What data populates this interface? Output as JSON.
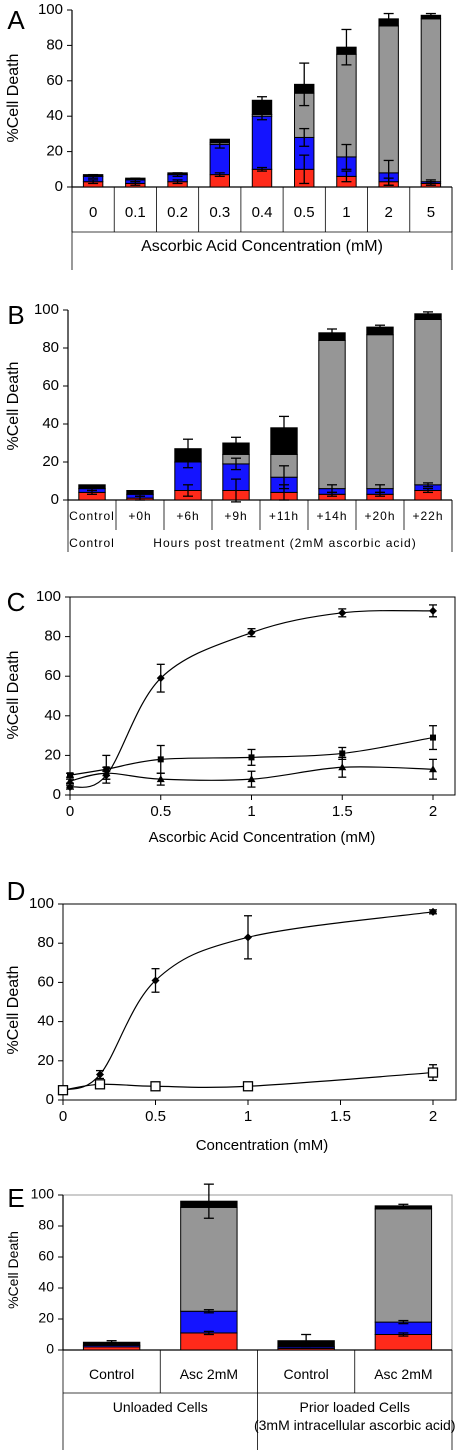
{
  "colors": {
    "red": "#ff2a1a",
    "blue": "#1414ff",
    "gray": "#969696",
    "black": "#000000"
  },
  "chart_data": [
    {
      "panel": "A",
      "type": "bar",
      "stacked": true,
      "ylabel": "%Cell Death",
      "xlabel": "Ascorbic Acid Concentration (mM)",
      "ylim": [
        0,
        100
      ],
      "yticks": [
        "0",
        "20",
        "40",
        "60",
        "80",
        "100"
      ],
      "categories": [
        "0",
        "0.1",
        "0.2",
        "0.3",
        "0.4",
        "0.5",
        "1",
        "2",
        "5"
      ],
      "series": [
        {
          "values": [
            3,
            2,
            3,
            7,
            10,
            10,
            6,
            3,
            2
          ],
          "errors": [
            1,
            1,
            1,
            1,
            1,
            8,
            3,
            2,
            1
          ]
        },
        {
          "values": [
            3,
            2,
            4,
            17,
            30,
            18,
            11,
            5,
            1
          ],
          "errors": [
            1,
            1,
            1,
            2,
            2,
            5,
            7,
            7,
            1
          ]
        },
        {
          "values": [
            0,
            0,
            0,
            1,
            1,
            25,
            58,
            83,
            92
          ],
          "errors": [
            0,
            0,
            0,
            0,
            0,
            0,
            0,
            0,
            0
          ]
        },
        {
          "values": [
            1,
            1,
            1,
            2,
            8,
            5,
            4,
            4,
            2
          ],
          "errors": [
            0,
            0,
            0,
            0,
            2,
            12,
            10,
            3,
            1
          ]
        }
      ]
    },
    {
      "panel": "B",
      "type": "bar",
      "stacked": true,
      "ylabel": "%Cell Death",
      "xlabel": "Hours post treatment (2mM ascorbic acid)",
      "ylim": [
        0,
        100
      ],
      "yticks": [
        "0",
        "20",
        "40",
        "60",
        "80",
        "100"
      ],
      "categories": [
        "Control",
        "+0h",
        "+6h",
        "+9h",
        "+11h",
        "+14h",
        "+20h",
        "+22h"
      ],
      "series": [
        {
          "values": [
            4,
            1,
            5,
            5,
            4,
            3,
            3,
            5
          ],
          "errors": [
            1,
            1,
            3,
            6,
            4,
            1,
            1,
            1
          ]
        },
        {
          "values": [
            2,
            2,
            15,
            14,
            8,
            3,
            3,
            3
          ],
          "errors": [
            1,
            1,
            3,
            3,
            6,
            2,
            2,
            1
          ]
        },
        {
          "values": [
            0,
            0,
            0,
            5,
            12,
            78,
            81,
            87
          ],
          "errors": [
            0,
            0,
            0,
            0,
            0,
            0,
            0,
            0
          ]
        },
        {
          "values": [
            2,
            2,
            7,
            6,
            14,
            4,
            4,
            3
          ],
          "errors": [
            0,
            0,
            5,
            3,
            6,
            2,
            1,
            1
          ]
        }
      ]
    },
    {
      "panel": "C",
      "type": "line",
      "ylabel": "%Cell Death",
      "xlabel": "Ascorbic Acid  Concentration (mM)",
      "xlim": [
        0,
        2
      ],
      "ylim": [
        0,
        100
      ],
      "xticks": [
        "0",
        "0.5",
        "1",
        "1.5",
        "2"
      ],
      "yticks": [
        "0",
        "20",
        "40",
        "60",
        "80",
        "100"
      ],
      "series": [
        {
          "marker": "diamond",
          "x": [
            0,
            0.2,
            0.5,
            1,
            1.5,
            2
          ],
          "y": [
            4,
            10,
            59,
            82,
            92,
            93
          ],
          "errors": [
            1,
            2,
            7,
            2,
            2,
            3
          ]
        },
        {
          "marker": "square",
          "x": [
            0,
            0.2,
            0.5,
            1,
            1.5,
            2
          ],
          "y": [
            10,
            13,
            18,
            19,
            21,
            29
          ],
          "errors": [
            1,
            7,
            7,
            4,
            3,
            6
          ]
        },
        {
          "marker": "triangle",
          "x": [
            0,
            0.2,
            0.5,
            1,
            1.5,
            2
          ],
          "y": [
            7,
            11,
            8,
            8,
            14,
            13
          ],
          "errors": [
            1,
            3,
            3,
            4,
            5,
            5
          ]
        }
      ]
    },
    {
      "panel": "D",
      "type": "line",
      "ylabel": "%Cell Death",
      "xlabel": "Concentration (mM)",
      "xlim": [
        0,
        2
      ],
      "ylim": [
        0,
        100
      ],
      "xticks": [
        "0",
        "0.5",
        "1",
        "1.5",
        "2"
      ],
      "yticks": [
        "0",
        "20",
        "40",
        "60",
        "80",
        "100"
      ],
      "series": [
        {
          "marker": "diamond",
          "x": [
            0,
            0.2,
            0.5,
            1,
            2
          ],
          "y": [
            5,
            13,
            61,
            83,
            96
          ],
          "errors": [
            1,
            2,
            6,
            11,
            1
          ]
        },
        {
          "marker": "open-square",
          "x": [
            0,
            0.2,
            0.5,
            1,
            2
          ],
          "y": [
            5,
            8,
            7,
            7,
            14
          ],
          "errors": [
            1,
            1,
            1,
            1,
            4
          ]
        }
      ]
    },
    {
      "panel": "E",
      "type": "bar",
      "stacked": true,
      "ylabel": "%Cell Death",
      "ylim": [
        0,
        100
      ],
      "yticks": [
        "0",
        "20",
        "40",
        "60",
        "80",
        "100"
      ],
      "categories": [
        "Control",
        "Asc 2mM",
        "Control",
        "Asc 2mM"
      ],
      "groups": [
        {
          "label": "Unloaded Cells",
          "start": 0,
          "end": 2
        },
        {
          "label": "Prior loaded Cells (3mM intracellular ascorbic acid)",
          "start": 2,
          "end": 4
        }
      ],
      "series": [
        {
          "values": [
            2,
            11,
            1,
            10
          ],
          "errors": [
            0,
            1,
            0,
            1
          ]
        },
        {
          "values": [
            1,
            14,
            1,
            8
          ],
          "errors": [
            0,
            1,
            0,
            1
          ]
        },
        {
          "values": [
            0,
            67,
            0,
            73
          ],
          "errors": [
            0,
            0,
            0,
            0
          ]
        },
        {
          "values": [
            2,
            4,
            4,
            2
          ],
          "errors": [
            1,
            11,
            4,
            1
          ]
        }
      ]
    }
  ],
  "panel_letters": [
    "A",
    "B",
    "C",
    "D",
    "E"
  ]
}
